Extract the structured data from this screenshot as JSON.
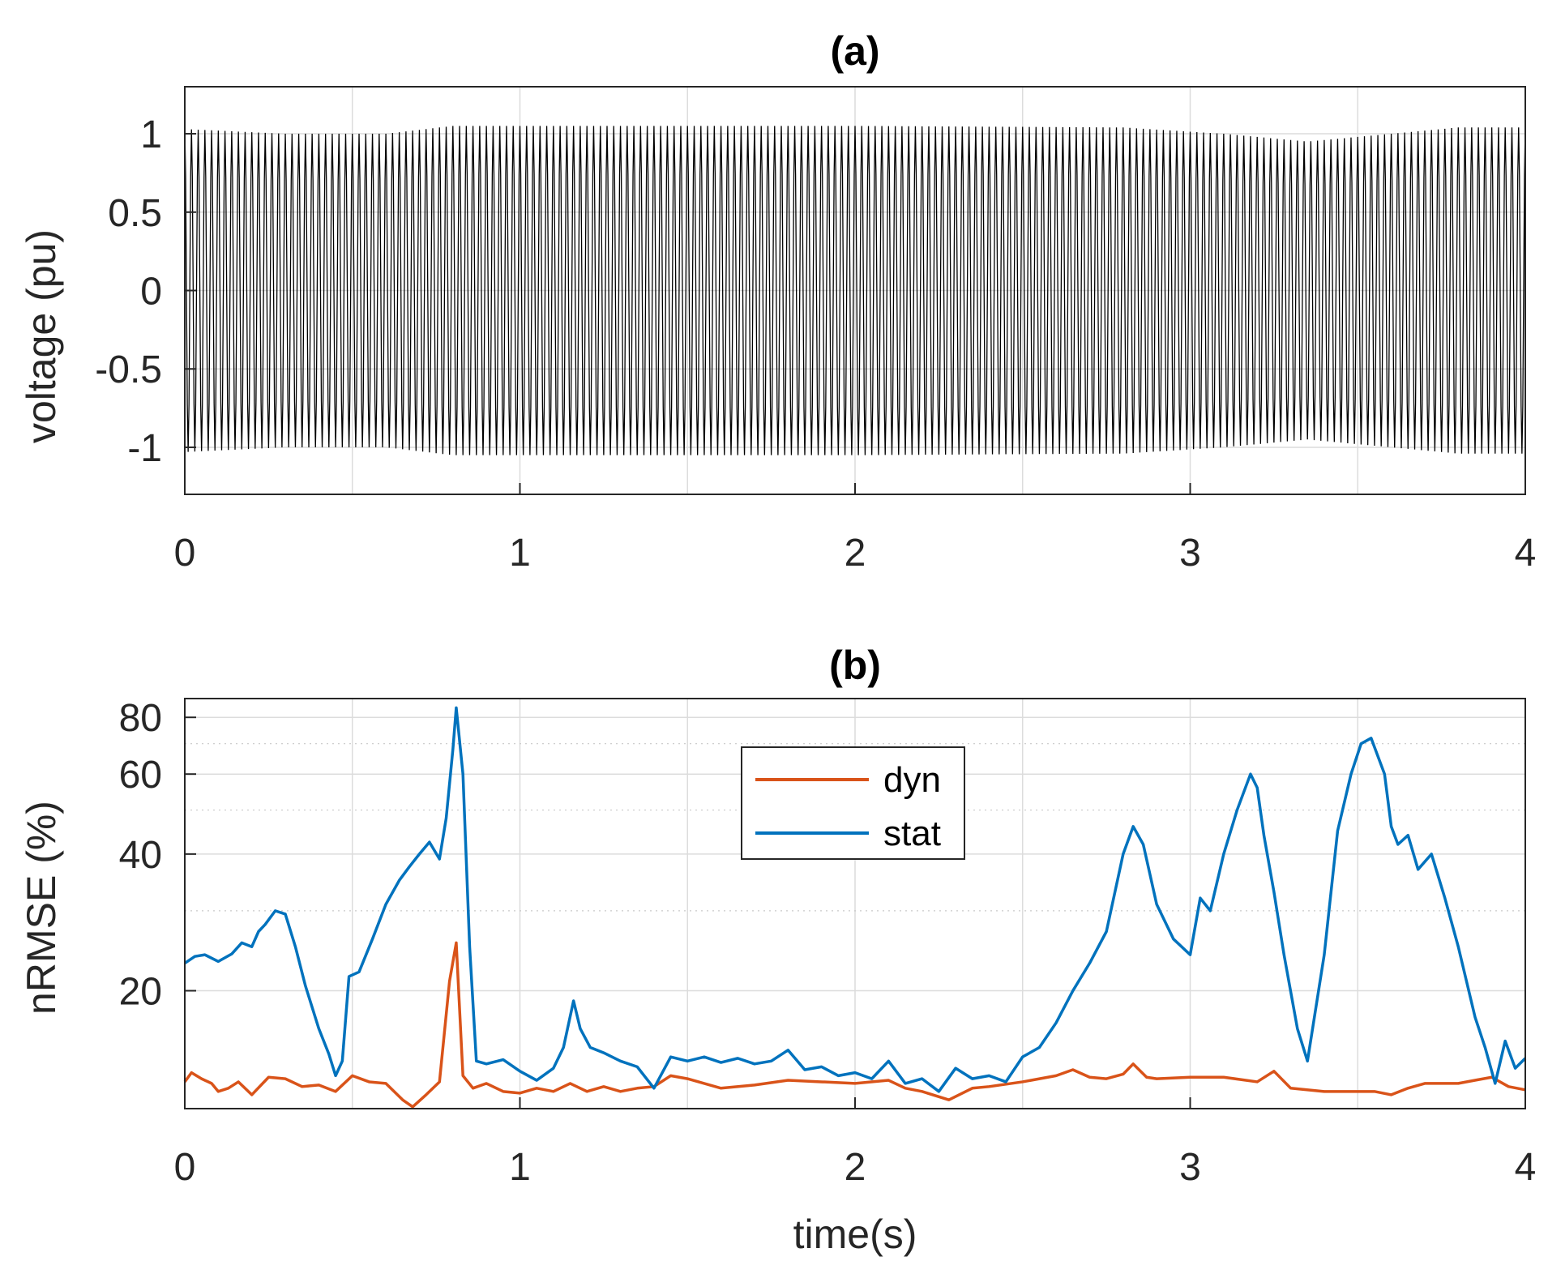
{
  "chart_data": [
    {
      "panel": "a",
      "type": "line",
      "title": "(a)",
      "xlabel": "",
      "ylabel": "voltage (pu)",
      "xlim": [
        0,
        4
      ],
      "ylim": [
        -1.3,
        1.3
      ],
      "xticks": [
        0,
        1,
        2,
        3,
        4
      ],
      "xtick_labels": [
        "0",
        "1",
        "2",
        "3",
        "4"
      ],
      "yticks": [
        1,
        0.5,
        0,
        -0.5,
        -1
      ],
      "ytick_labels": [
        "1",
        "0.5",
        "0",
        "-0.5",
        "-1"
      ],
      "grid": true,
      "signal": {
        "color": "#000000",
        "frequency_hz": 50,
        "envelope": {
          "t": [
            0,
            0.3,
            0.6,
            0.8,
            1.0,
            2.0,
            2.8,
            3.1,
            3.35,
            3.6,
            3.8,
            4.0
          ],
          "amplitude": [
            1.03,
            1.0,
            1.0,
            1.05,
            1.05,
            1.05,
            1.04,
            1.0,
            0.95,
            1.0,
            1.04,
            1.04
          ]
        }
      }
    },
    {
      "panel": "b",
      "type": "line",
      "title": "(b)",
      "xlabel": "time(s)",
      "ylabel": "nRMSE (%)",
      "yscale": "log",
      "xlim": [
        0,
        4
      ],
      "ylim": [
        11,
        88
      ],
      "xticks": [
        0,
        1,
        2,
        3,
        4
      ],
      "xtick_labels": [
        "0",
        "1",
        "2",
        "3",
        "4"
      ],
      "yticks": [
        20,
        40,
        60,
        80
      ],
      "ytick_labels": [
        "20",
        "40",
        "60",
        "80"
      ],
      "grid": true,
      "legend": {
        "position": "top-center"
      },
      "series": [
        {
          "name": "dyn",
          "color": "#D95319",
          "x": [
            0,
            0.02,
            0.05,
            0.08,
            0.1,
            0.13,
            0.16,
            0.2,
            0.25,
            0.3,
            0.35,
            0.4,
            0.45,
            0.5,
            0.55,
            0.6,
            0.65,
            0.68,
            0.72,
            0.76,
            0.79,
            0.81,
            0.83,
            0.86,
            0.9,
            0.95,
            1.0,
            1.05,
            1.1,
            1.15,
            1.2,
            1.25,
            1.3,
            1.35,
            1.4,
            1.45,
            1.5,
            1.6,
            1.7,
            1.8,
            1.9,
            2.0,
            2.1,
            2.15,
            2.2,
            2.28,
            2.35,
            2.4,
            2.5,
            2.6,
            2.65,
            2.7,
            2.75,
            2.8,
            2.83,
            2.87,
            2.9,
            3.0,
            3.1,
            3.2,
            3.25,
            3.3,
            3.4,
            3.5,
            3.55,
            3.6,
            3.65,
            3.7,
            3.8,
            3.85,
            3.9,
            3.95,
            4.0
          ],
          "y": [
            12.6,
            13.2,
            12.8,
            12.5,
            12.0,
            12.2,
            12.6,
            11.8,
            12.9,
            12.8,
            12.3,
            12.4,
            12.0,
            13.0,
            12.6,
            12.5,
            11.5,
            11.1,
            11.8,
            12.6,
            21.0,
            25.5,
            13.0,
            12.2,
            12.5,
            12.0,
            11.9,
            12.2,
            12.0,
            12.5,
            12.0,
            12.3,
            12.0,
            12.2,
            12.3,
            13.0,
            12.8,
            12.2,
            12.4,
            12.7,
            12.6,
            12.5,
            12.7,
            12.2,
            12.0,
            11.5,
            12.2,
            12.3,
            12.6,
            13.0,
            13.4,
            12.9,
            12.8,
            13.1,
            13.8,
            12.9,
            12.8,
            12.9,
            12.9,
            12.6,
            13.3,
            12.2,
            12.0,
            12.0,
            12.0,
            11.8,
            12.2,
            12.5,
            12.5,
            12.7,
            12.9,
            12.3,
            12.1
          ]
        },
        {
          "name": "stat",
          "color": "#0072BD",
          "x": [
            0,
            0.03,
            0.06,
            0.1,
            0.14,
            0.17,
            0.2,
            0.22,
            0.24,
            0.27,
            0.3,
            0.33,
            0.36,
            0.4,
            0.43,
            0.45,
            0.47,
            0.49,
            0.52,
            0.56,
            0.6,
            0.64,
            0.67,
            0.7,
            0.73,
            0.76,
            0.78,
            0.8,
            0.81,
            0.83,
            0.85,
            0.87,
            0.9,
            0.95,
            1.0,
            1.05,
            1.1,
            1.13,
            1.16,
            1.18,
            1.21,
            1.25,
            1.3,
            1.35,
            1.4,
            1.45,
            1.5,
            1.55,
            1.6,
            1.65,
            1.7,
            1.75,
            1.8,
            1.85,
            1.9,
            1.95,
            2.0,
            2.05,
            2.1,
            2.15,
            2.2,
            2.25,
            2.3,
            2.35,
            2.4,
            2.45,
            2.5,
            2.55,
            2.6,
            2.65,
            2.7,
            2.75,
            2.8,
            2.83,
            2.86,
            2.9,
            2.95,
            3.0,
            3.03,
            3.06,
            3.1,
            3.14,
            3.18,
            3.2,
            3.22,
            3.25,
            3.28,
            3.32,
            3.35,
            3.4,
            3.44,
            3.48,
            3.51,
            3.54,
            3.58,
            3.6,
            3.62,
            3.65,
            3.68,
            3.72,
            3.76,
            3.8,
            3.85,
            3.88,
            3.91,
            3.94,
            3.97,
            4.0
          ],
          "y": [
            23.0,
            23.8,
            24.0,
            23.2,
            24.1,
            25.5,
            25.0,
            27.0,
            28.0,
            30.0,
            29.5,
            25.0,
            20.5,
            16.5,
            14.5,
            13.0,
            14.0,
            21.5,
            22.0,
            26.0,
            31.0,
            35.0,
            37.5,
            40.0,
            42.5,
            39.0,
            48.0,
            68.0,
            84.0,
            60.0,
            25.0,
            14.0,
            13.8,
            14.1,
            13.3,
            12.7,
            13.5,
            15.0,
            19.0,
            16.5,
            15.0,
            14.6,
            14.0,
            13.6,
            12.2,
            14.3,
            14.0,
            14.3,
            13.9,
            14.2,
            13.8,
            14.0,
            14.8,
            13.4,
            13.6,
            13.0,
            13.2,
            12.8,
            14.0,
            12.5,
            12.8,
            12.0,
            13.5,
            12.8,
            13.0,
            12.6,
            14.3,
            15.0,
            17.0,
            20.0,
            23.0,
            27.0,
            40.0,
            46.0,
            42.0,
            31.0,
            26.0,
            24.0,
            32.0,
            30.0,
            40.0,
            50.0,
            60.0,
            56.0,
            44.0,
            33.0,
            24.0,
            16.5,
            14.0,
            24.0,
            45.0,
            60.0,
            70.0,
            72.0,
            60.0,
            46.0,
            42.0,
            44.0,
            37.0,
            40.0,
            32.0,
            25.0,
            17.5,
            15.0,
            12.5,
            15.5,
            13.5,
            14.2
          ]
        }
      ]
    }
  ]
}
